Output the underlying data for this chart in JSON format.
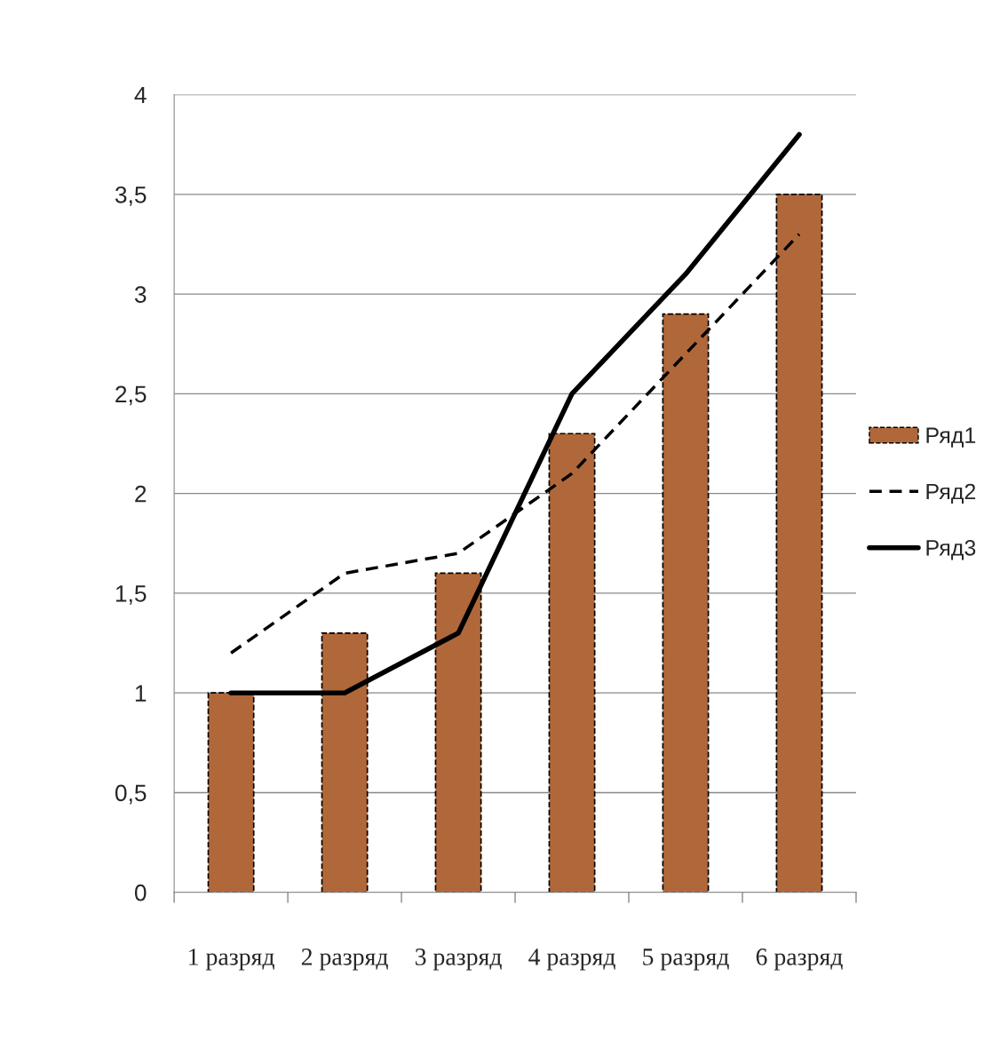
{
  "chart_data": {
    "type": "bar",
    "categories": [
      "1 разряд",
      "2 разряд",
      "3 разряд",
      "4 разряд",
      "5 разряд",
      "6 разряд"
    ],
    "series": [
      {
        "name": "Ряд1",
        "color": "#b0683a",
        "values": [
          1,
          1.3,
          1.6,
          2.3,
          2.9,
          3.5
        ]
      },
      {
        "name": "Ряд2",
        "type": "line",
        "line_style": "dashed",
        "color": "#000000",
        "values": [
          1.2,
          1.6,
          1.7,
          2.1,
          2.7,
          3.3
        ]
      },
      {
        "name": "Ряд3",
        "type": "line",
        "line_style": "solid",
        "color": "#000000",
        "values": [
          1,
          1.0,
          1.3,
          2.5,
          3.1,
          3.8
        ]
      }
    ],
    "ylim": [
      0,
      4
    ],
    "yticks": [
      0,
      {
        "value": 0.5,
        "label": "0,5"
      },
      1,
      {
        "value": 1.5,
        "label": "1,5"
      },
      2,
      {
        "value": 2.5,
        "label": "2,5"
      },
      3,
      {
        "value": 3.5,
        "label": "3,5"
      },
      4
    ],
    "grid": "y",
    "legend": "right"
  }
}
